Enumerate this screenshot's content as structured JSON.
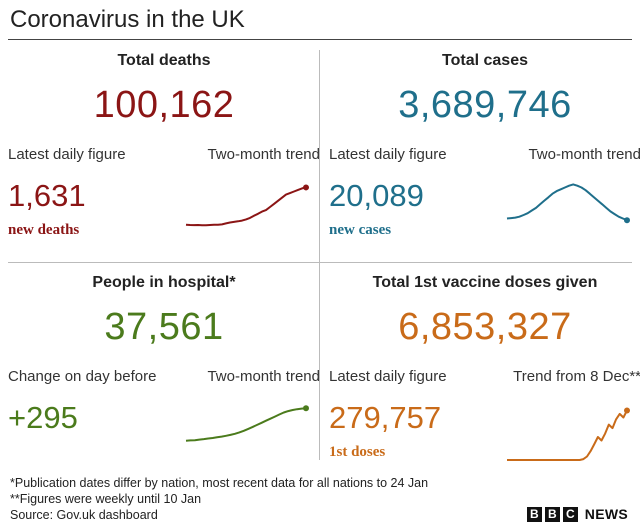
{
  "title": "Coronavirus in the UK",
  "colors": {
    "deaths": "#8b1515",
    "cases": "#1f6f8b",
    "hospital": "#4b7b1c",
    "vaccine": "#c96b19"
  },
  "panels": {
    "deaths": {
      "heading": "Total deaths",
      "total": "100,162",
      "left_label": "Latest daily figure",
      "right_label": "Two-month trend",
      "value": "1,631",
      "sub": "new deaths"
    },
    "cases": {
      "heading": "Total cases",
      "total": "3,689,746",
      "left_label": "Latest daily figure",
      "right_label": "Two-month trend",
      "value": "20,089",
      "sub": "new cases"
    },
    "hospital": {
      "heading": "People in hospital*",
      "total": "37,561",
      "left_label": "Change on day before",
      "right_label": "Two-month trend",
      "value": "+295",
      "sub": ""
    },
    "vaccine": {
      "heading": "Total 1st vaccine doses given",
      "total": "6,853,327",
      "left_label": "Latest daily figure",
      "right_label": "Trend from 8 Dec**",
      "value": "279,757",
      "sub": "1st doses"
    }
  },
  "footnotes": [
    "*Publication dates differ by nation, most recent data for all nations to 24 Jan",
    "**Figures were weekly until 10 Jan",
    "Source: Gov.uk dashboard"
  ],
  "brand": {
    "letters": [
      "B",
      "B",
      "C"
    ],
    "word": "NEWS"
  },
  "chart_data": [
    {
      "type": "line",
      "title": "Two-month trend",
      "series": [
        {
          "values": [
            430,
            420,
            415,
            418,
            412,
            410,
            420,
            430,
            425,
            440,
            470,
            500,
            520,
            540,
            560,
            600,
            650,
            720,
            780,
            850,
            900,
            1000,
            1100,
            1200,
            1300,
            1400,
            1450,
            1500,
            1550,
            1600,
            1631
          ]
        }
      ],
      "ylim": [
        0,
        2000
      ],
      "end_marker": true
    },
    {
      "type": "line",
      "title": "Two-month trend",
      "series": [
        {
          "values": [
            22000,
            22500,
            23000,
            24000,
            26000,
            28000,
            31000,
            34000,
            38000,
            42000,
            46000,
            50000,
            53000,
            55000,
            57000,
            59000,
            60500,
            59000,
            57000,
            54000,
            50000,
            46000,
            42000,
            38000,
            34000,
            30000,
            27000,
            24000,
            22000,
            20089
          ]
        }
      ],
      "ylim": [
        0,
        70000
      ],
      "end_marker": true
    },
    {
      "type": "line",
      "title": "Two-month trend",
      "series": [
        {
          "values": [
            14000,
            14200,
            14400,
            14800,
            15200,
            15600,
            16000,
            16500,
            17000,
            17600,
            18200,
            19000,
            20000,
            21200,
            22600,
            24000,
            25500,
            27000,
            28500,
            30000,
            31500,
            33000,
            34500,
            35500,
            36300,
            36900,
            37300,
            37561
          ]
        }
      ],
      "ylim": [
        0,
        45000
      ],
      "end_marker": true
    },
    {
      "type": "line",
      "title": "Trend from 8 Dec**",
      "series": [
        {
          "values": [
            0,
            0,
            0,
            0,
            0,
            0,
            0,
            0,
            0,
            0,
            0,
            0,
            0,
            0,
            0,
            0,
            0,
            0,
            0,
            0,
            0,
            5000,
            20000,
            50000,
            90000,
            130000,
            110000,
            150000,
            200000,
            180000,
            230000,
            260000,
            240000,
            279757
          ]
        }
      ],
      "ylim": [
        0,
        350000
      ],
      "end_marker": true
    }
  ]
}
